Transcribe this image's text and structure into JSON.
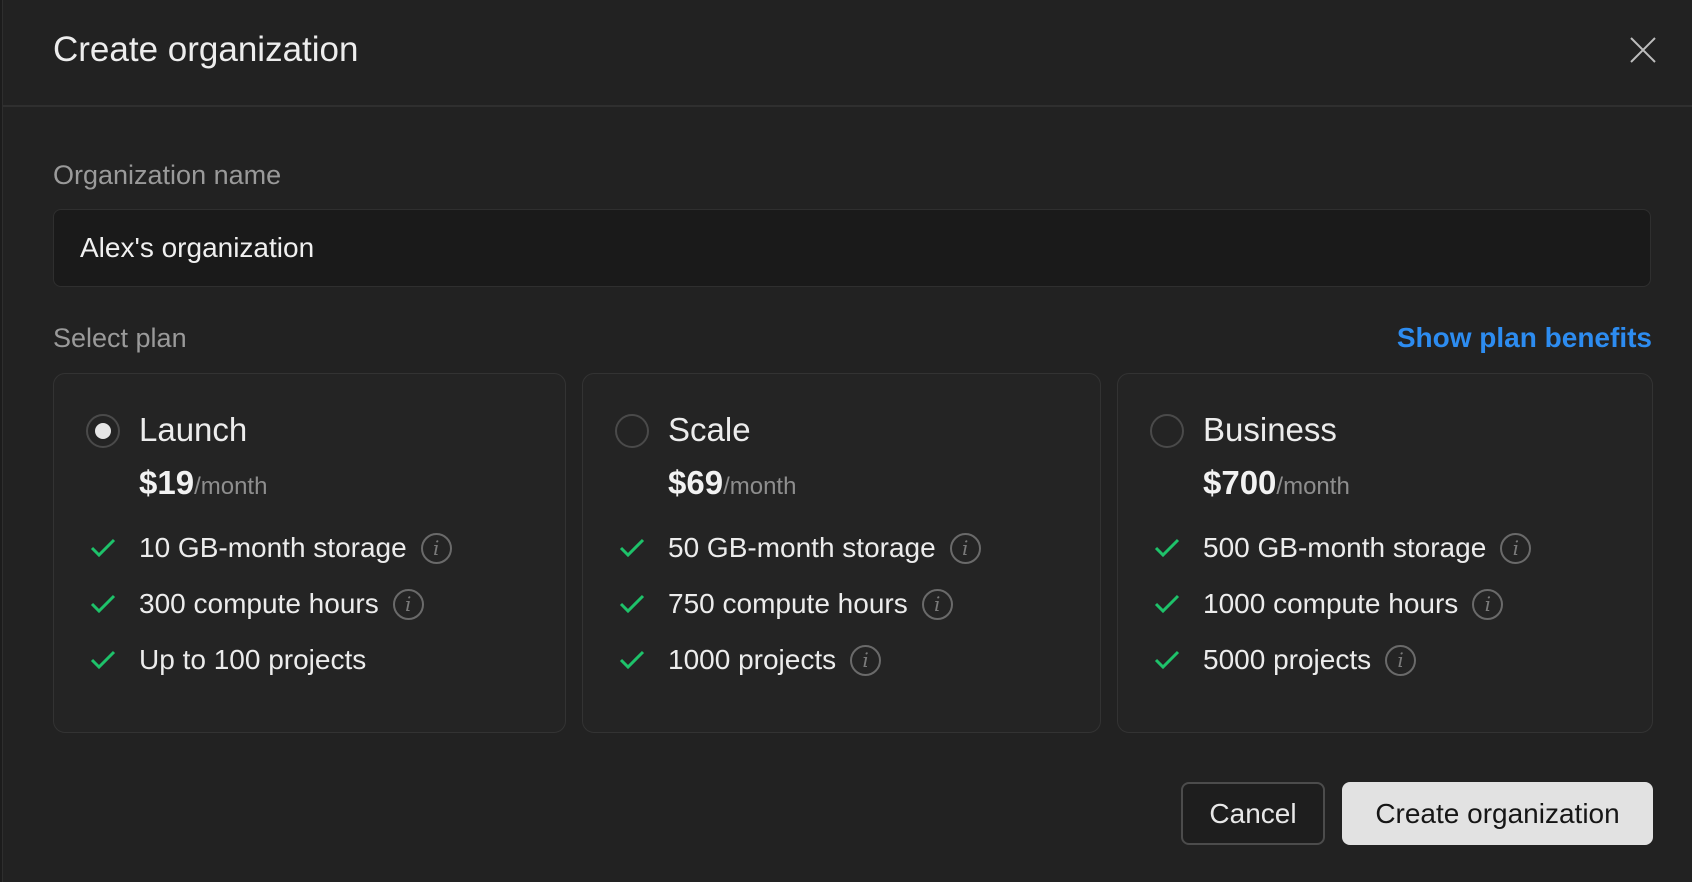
{
  "dialog": {
    "title": "Create organization",
    "close_icon": "close-icon"
  },
  "org": {
    "label": "Organization name",
    "value": "Alex's organization"
  },
  "plan": {
    "label": "Select plan",
    "benefits_link": "Show plan benefits",
    "link_color": "#2d8cf0",
    "check_color": "#1ec26a",
    "plans": [
      {
        "name": "Launch",
        "price": "$19",
        "period": "/month",
        "selected": true,
        "features": [
          {
            "text": "10 GB-month storage",
            "info": true
          },
          {
            "text": "300 compute hours",
            "info": true
          },
          {
            "text": "Up to 100 projects",
            "info": false
          }
        ]
      },
      {
        "name": "Scale",
        "price": "$69",
        "period": "/month",
        "selected": false,
        "features": [
          {
            "text": "50 GB-month storage",
            "info": true
          },
          {
            "text": "750 compute hours",
            "info": true
          },
          {
            "text": "1000 projects",
            "info": true
          }
        ]
      },
      {
        "name": "Business",
        "price": "$700",
        "period": "/month",
        "selected": false,
        "features": [
          {
            "text": "500 GB-month storage",
            "info": true
          },
          {
            "text": "1000 compute hours",
            "info": true
          },
          {
            "text": "5000 projects",
            "info": true
          }
        ]
      }
    ]
  },
  "footer": {
    "cancel": "Cancel",
    "create": "Create organization"
  }
}
